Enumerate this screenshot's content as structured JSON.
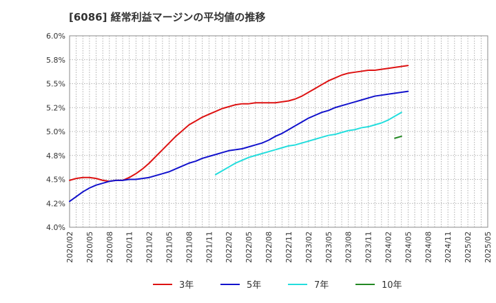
{
  "chart_data": {
    "type": "line",
    "title": "[6086]  経常利益マージンの平均値の推移",
    "xlabel": "",
    "ylabel": "",
    "ylim": [
      4.0,
      6.0
    ],
    "y_ticks": [
      "4.0%",
      "4.2%",
      "4.5%",
      "4.8%",
      "5.0%",
      "5.2%",
      "5.5%",
      "5.8%",
      "6.0%"
    ],
    "x_ticks": [
      "2020/02",
      "2020/05",
      "2020/08",
      "2020/11",
      "2021/02",
      "2021/05",
      "2021/08",
      "2021/11",
      "2022/02",
      "2022/05",
      "2022/08",
      "2022/11",
      "2023/02",
      "2023/05",
      "2023/08",
      "2023/11",
      "2024/02",
      "2024/05",
      "2024/08",
      "2024/11",
      "2025/02",
      "2025/05"
    ],
    "grid": true,
    "legend_position": "bottom",
    "series": [
      {
        "name": "3年",
        "color": "#dd1111",
        "start_index": 0,
        "values": [
          4.49,
          4.51,
          4.52,
          4.52,
          4.51,
          4.49,
          4.48,
          4.49,
          4.49,
          4.52,
          4.56,
          4.61,
          4.67,
          4.74,
          4.81,
          4.88,
          4.95,
          5.01,
          5.07,
          5.11,
          5.15,
          5.18,
          5.21,
          5.24,
          5.26,
          5.28,
          5.29,
          5.29,
          5.3,
          5.3,
          5.3,
          5.3,
          5.31,
          5.32,
          5.34,
          5.37,
          5.41,
          5.45,
          5.49,
          5.53,
          5.56,
          5.59,
          5.61,
          5.62,
          5.63,
          5.64,
          5.64,
          5.65,
          5.66,
          5.67,
          5.68,
          5.69
        ]
      },
      {
        "name": "5年",
        "color": "#1111cc",
        "start_index": 0,
        "values": [
          4.27,
          4.32,
          4.37,
          4.41,
          4.44,
          4.46,
          4.48,
          4.49,
          4.49,
          4.5,
          4.5,
          4.51,
          4.52,
          4.54,
          4.56,
          4.58,
          4.61,
          4.64,
          4.67,
          4.69,
          4.72,
          4.74,
          4.76,
          4.78,
          4.8,
          4.81,
          4.82,
          4.84,
          4.86,
          4.88,
          4.91,
          4.95,
          4.98,
          5.02,
          5.06,
          5.1,
          5.14,
          5.17,
          5.2,
          5.22,
          5.25,
          5.27,
          5.29,
          5.31,
          5.33,
          5.35,
          5.37,
          5.38,
          5.39,
          5.4,
          5.41,
          5.42
        ]
      },
      {
        "name": "7年",
        "color": "#22dddd",
        "start_index": 22,
        "values": [
          4.55,
          4.59,
          4.63,
          4.67,
          4.7,
          4.73,
          4.75,
          4.77,
          4.79,
          4.81,
          4.83,
          4.85,
          4.86,
          4.88,
          4.9,
          4.92,
          4.94,
          4.96,
          4.97,
          4.99,
          5.01,
          5.02,
          5.04,
          5.05,
          5.07,
          5.09,
          5.12,
          5.16,
          5.2
        ]
      },
      {
        "name": "10年",
        "color": "#228822",
        "start_index": 49,
        "values": [
          4.93,
          4.95
        ]
      }
    ]
  }
}
